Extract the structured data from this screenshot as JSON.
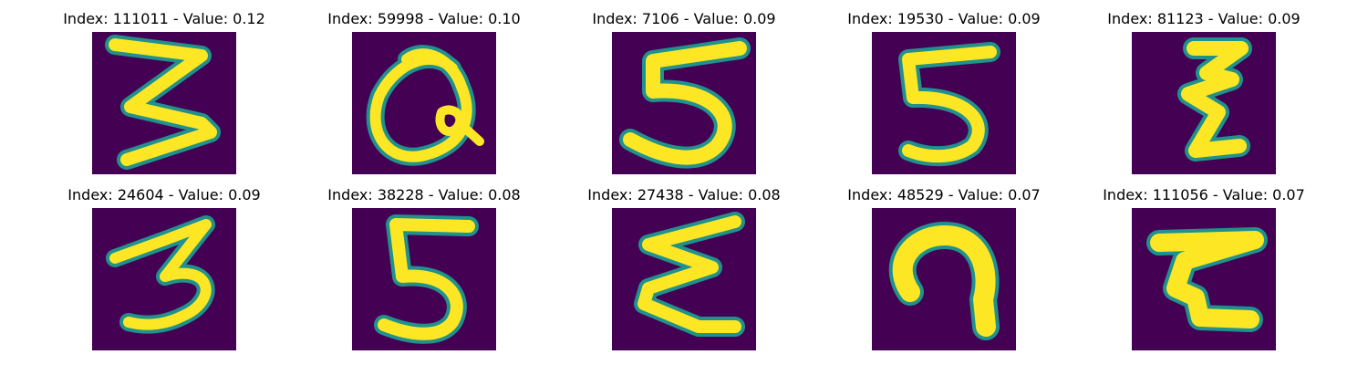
{
  "figure": {
    "background_color": "#440154",
    "stroke_color": "#fde725",
    "edge_color": "#21918c",
    "panels": [
      {
        "title": "Index: 111011 - Value: 0.12",
        "index": "111011",
        "value": "0.12",
        "digit_shape": "3"
      },
      {
        "title": "Index: 59998 - Value: 0.10",
        "index": "59998",
        "value": "0.10",
        "digit_shape": "loop"
      },
      {
        "title": "Index: 7106 - Value: 0.09",
        "index": "7106",
        "value": "0.09",
        "digit_shape": "5"
      },
      {
        "title": "Index: 19530 - Value: 0.09",
        "index": "19530",
        "value": "0.09",
        "digit_shape": "5"
      },
      {
        "title": "Index: 81123 - Value: 0.09",
        "index": "81123",
        "value": "0.09",
        "digit_shape": "zigzag"
      },
      {
        "title": "Index: 24604 - Value: 0.09",
        "index": "24604",
        "value": "0.09",
        "digit_shape": "3"
      },
      {
        "title": "Index: 38228 - Value: 0.08",
        "index": "38228",
        "value": "0.08",
        "digit_shape": "5"
      },
      {
        "title": "Index: 27438 - Value: 0.08",
        "index": "27438",
        "value": "0.08",
        "digit_shape": "sigma"
      },
      {
        "title": "Index: 48529 - Value: 0.07",
        "index": "48529",
        "value": "0.07",
        "digit_shape": "hook"
      },
      {
        "title": "Index: 111056 - Value: 0.07",
        "index": "111056",
        "value": "0.07",
        "digit_shape": "zigzag"
      }
    ]
  }
}
